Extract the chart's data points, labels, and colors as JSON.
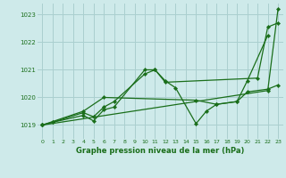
{
  "title": "Graphe pression niveau de la mer (hPa)",
  "background_color": "#ceeaea",
  "grid_color": "#aacfcf",
  "line_color": "#1a6e1a",
  "marker_color": "#1a6e1a",
  "ylim": [
    1018.5,
    1023.4
  ],
  "xlim": [
    -0.5,
    23.5
  ],
  "yticks": [
    1019,
    1020,
    1021,
    1022,
    1023
  ],
  "xticks": [
    0,
    1,
    2,
    3,
    4,
    5,
    6,
    7,
    8,
    9,
    10,
    11,
    12,
    13,
    14,
    15,
    16,
    17,
    18,
    19,
    20,
    21,
    22,
    23
  ],
  "lines_x": [
    [
      0,
      1,
      4,
      5,
      6,
      7,
      10,
      11,
      12,
      21,
      22,
      23
    ],
    [
      0,
      1,
      4,
      5,
      6,
      7,
      10,
      11,
      12,
      13,
      15,
      16,
      17,
      19,
      20,
      22
    ],
    [
      0,
      4,
      6,
      15,
      17,
      19,
      20,
      22,
      23
    ],
    [
      0,
      22,
      23
    ]
  ],
  "lines_y": [
    [
      1019.0,
      1019.1,
      1019.35,
      1019.15,
      1019.55,
      1019.65,
      1021.0,
      1021.0,
      1020.55,
      1020.7,
      1022.55,
      1022.7
    ],
    [
      1019.0,
      1019.1,
      1019.45,
      1019.3,
      1019.65,
      1019.85,
      1020.85,
      1021.0,
      1020.6,
      1020.35,
      1019.05,
      1019.5,
      1019.75,
      1019.85,
      1020.6,
      1022.25
    ],
    [
      1019.0,
      1019.5,
      1020.0,
      1019.9,
      1019.75,
      1019.85,
      1020.2,
      1020.3,
      1020.45
    ],
    [
      1019.0,
      1020.25,
      1023.2
    ]
  ]
}
